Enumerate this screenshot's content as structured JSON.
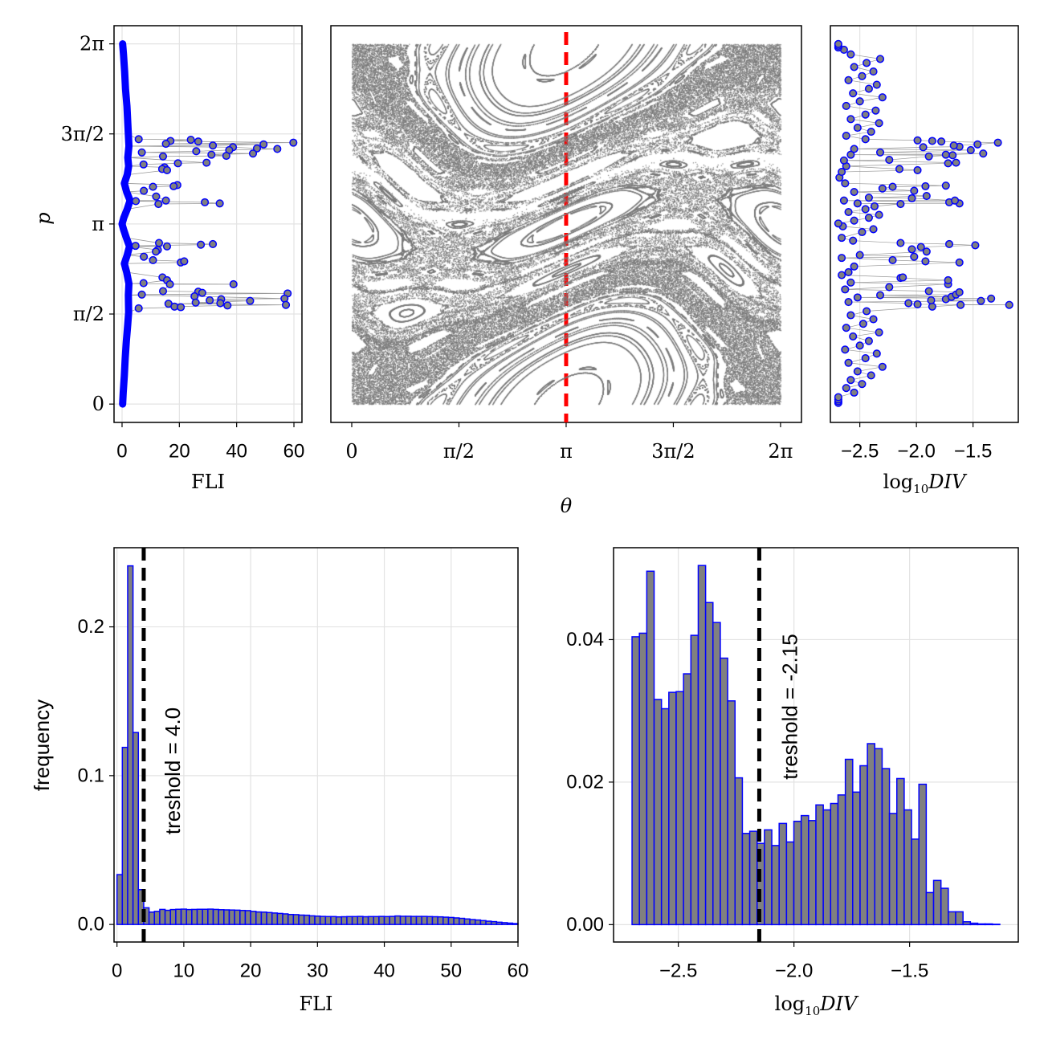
{
  "colors": {
    "marker_fill": "#808080",
    "marker_edge": "#0000ff",
    "connector": "#999999",
    "bar_fill": "#808080",
    "bar_edge": "#0000ff",
    "section_points": "#7a7a7a",
    "section_line": "#ff0000",
    "threshold_line": "#000000",
    "grid": "#e3e3e3"
  },
  "chart_data": [
    {
      "id": "fli_vs_p",
      "type": "scatter",
      "xlabel": "FLI",
      "ylabel": "p",
      "xlim": [
        -2.8,
        62.8
      ],
      "ylim": [
        -0.32,
        6.6
      ],
      "xticks": [
        {
          "v": 0,
          "label": "0"
        },
        {
          "v": 20,
          "label": "20"
        },
        {
          "v": 40,
          "label": "40"
        },
        {
          "v": 60,
          "label": "60"
        }
      ],
      "yticks": [
        {
          "v": 0,
          "label": "0"
        },
        {
          "v": 1.5708,
          "label": "π/2"
        },
        {
          "v": 3.1416,
          "label": "π"
        },
        {
          "v": 4.7124,
          "label": "3π/2"
        },
        {
          "v": 6.2832,
          "label": "2π"
        }
      ],
      "baseline": [
        [
          0.0,
          0.2
        ],
        [
          0.2,
          0.4
        ],
        [
          0.5,
          0.8
        ],
        [
          0.8,
          1.1
        ],
        [
          1.1,
          1.5
        ],
        [
          1.4,
          2.0
        ],
        [
          1.6,
          2.3
        ],
        [
          1.9,
          2.2
        ],
        [
          2.1,
          2.4
        ],
        [
          2.3,
          1.6
        ],
        [
          2.45,
          0.8
        ],
        [
          2.6,
          1.8
        ],
        [
          2.75,
          2.6
        ],
        [
          2.9,
          1.5
        ],
        [
          3.05,
          0.5
        ],
        [
          3.1416,
          0.0
        ],
        [
          3.25,
          0.6
        ],
        [
          3.4,
          1.8
        ],
        [
          3.55,
          2.8
        ],
        [
          3.7,
          1.6
        ],
        [
          3.85,
          0.8
        ],
        [
          4.0,
          1.8
        ],
        [
          4.15,
          2.3
        ],
        [
          4.3,
          2.0
        ],
        [
          4.5,
          2.4
        ],
        [
          4.7,
          2.2
        ],
        [
          4.9,
          2.0
        ],
        [
          5.2,
          1.7
        ],
        [
          5.5,
          1.2
        ],
        [
          5.8,
          0.9
        ],
        [
          6.1,
          0.5
        ],
        [
          6.2832,
          0.2
        ]
      ],
      "outliers": [
        [
          4.62,
          5.8
        ],
        [
          4.59,
          16.9
        ],
        [
          4.61,
          24.0
        ],
        [
          4.58,
          26.6
        ],
        [
          4.51,
          31.7
        ],
        [
          4.53,
          49.4
        ],
        [
          4.56,
          59.8
        ],
        [
          4.45,
          54.2
        ],
        [
          4.46,
          47.1
        ],
        [
          4.48,
          38.7
        ],
        [
          4.43,
          37.4
        ],
        [
          4.41,
          25.9
        ],
        [
          4.39,
          6.9
        ],
        [
          4.35,
          31.2
        ],
        [
          4.33,
          36.4
        ],
        [
          4.37,
          45.7
        ],
        [
          4.32,
          14.3
        ],
        [
          4.54,
          15.3
        ],
        [
          4.21,
          29.5
        ],
        [
          4.2,
          19.5
        ],
        [
          4.18,
          7.5
        ],
        [
          4.13,
          14.8
        ],
        [
          4.1,
          14.0
        ],
        [
          4.08,
          15.7
        ],
        [
          3.82,
          19.3
        ],
        [
          3.8,
          18.0
        ],
        [
          3.79,
          10.8
        ],
        [
          3.72,
          7.6
        ],
        [
          3.62,
          11.9
        ],
        [
          3.55,
          15.3
        ],
        [
          3.49,
          12.7
        ],
        [
          3.52,
          28.9
        ],
        [
          3.5,
          34.1
        ],
        [
          3.54,
          4.8
        ],
        [
          2.76,
          4.7
        ],
        [
          2.81,
          12.9
        ],
        [
          2.75,
          15.7
        ],
        [
          2.78,
          27.5
        ],
        [
          2.79,
          31.7
        ],
        [
          2.69,
          12.5
        ],
        [
          2.66,
          11.8
        ],
        [
          2.57,
          7.6
        ],
        [
          2.51,
          10.8
        ],
        [
          2.47,
          20.5
        ],
        [
          2.49,
          21.7
        ],
        [
          2.21,
          14.1
        ],
        [
          2.16,
          15.7
        ],
        [
          2.09,
          16.7
        ],
        [
          2.11,
          7.5
        ],
        [
          2.09,
          38.9
        ],
        [
          1.97,
          14.3
        ],
        [
          1.91,
          6.9
        ],
        [
          1.96,
          26.6
        ],
        [
          1.94,
          28.0
        ],
        [
          1.88,
          25.3
        ],
        [
          1.93,
          57.8
        ],
        [
          1.84,
          56.7
        ],
        [
          1.81,
          30.6
        ],
        [
          1.83,
          34.6
        ],
        [
          1.8,
          44.7
        ],
        [
          1.77,
          25.7
        ],
        [
          1.76,
          34.3
        ],
        [
          1.72,
          36.8
        ],
        [
          1.73,
          57.2
        ],
        [
          1.75,
          16.2
        ],
        [
          1.7,
          18.3
        ],
        [
          1.69,
          20.5
        ],
        [
          1.67,
          5.8
        ]
      ]
    },
    {
      "id": "poincare_section",
      "type": "scatter",
      "xlabel": "θ",
      "ylabel": "p",
      "xlim": [
        -0.306,
        6.59
      ],
      "ylim": [
        -0.32,
        6.6
      ],
      "xticks": [
        {
          "v": 0,
          "label": "0"
        },
        {
          "v": 1.5708,
          "label": "π/2"
        },
        {
          "v": 3.1416,
          "label": "π"
        },
        {
          "v": 4.7124,
          "label": "3π/2"
        },
        {
          "v": 6.2832,
          "label": "2π"
        }
      ],
      "section_theta": 3.1416
    },
    {
      "id": "div_vs_p",
      "type": "scatter",
      "xlabel_parts": {
        "base": "log",
        "sub": "10",
        "var": "DIV"
      },
      "xlim": [
        -2.76,
        -1.1
      ],
      "ylim": [
        -0.32,
        6.6
      ],
      "xticks": [
        {
          "v": -2.5,
          "label": "−2.5"
        },
        {
          "v": -2.0,
          "label": "−2.0"
        },
        {
          "v": -1.5,
          "label": "−1.5"
        }
      ],
      "points": [
        [
          0.02,
          -2.69
        ],
        [
          0.05,
          -2.69
        ],
        [
          0.08,
          -2.69
        ],
        [
          0.12,
          -2.69
        ],
        [
          0.2,
          -2.55
        ],
        [
          0.28,
          -2.62
        ],
        [
          0.35,
          -2.48
        ],
        [
          0.42,
          -2.58
        ],
        [
          0.5,
          -2.4
        ],
        [
          0.57,
          -2.52
        ],
        [
          0.65,
          -2.3
        ],
        [
          0.72,
          -2.6
        ],
        [
          0.8,
          -2.45
        ],
        [
          0.88,
          -2.35
        ],
        [
          0.95,
          -2.63
        ],
        [
          1.02,
          -2.5
        ],
        [
          1.1,
          -2.42
        ],
        [
          1.18,
          -2.56
        ],
        [
          1.25,
          -2.33
        ],
        [
          1.33,
          -2.62
        ],
        [
          1.4,
          -2.47
        ],
        [
          1.48,
          -2.38
        ],
        [
          1.55,
          -2.58
        ],
        [
          1.62,
          -2.44
        ],
        [
          1.78,
          -2.6
        ],
        [
          1.86,
          -2.52
        ],
        [
          2.0,
          -2.63
        ],
        [
          2.12,
          -2.58
        ],
        [
          2.25,
          -2.66
        ],
        [
          2.3,
          -2.6
        ],
        [
          2.4,
          -2.55
        ],
        [
          2.55,
          -2.66
        ],
        [
          2.6,
          -2.5
        ],
        [
          2.85,
          -2.56
        ],
        [
          2.9,
          -2.66
        ],
        [
          3.0,
          -2.48
        ],
        [
          3.05,
          -2.38
        ],
        [
          3.1,
          -2.65
        ],
        [
          3.15,
          -2.69
        ],
        [
          3.2,
          -2.55
        ],
        [
          3.25,
          -2.42
        ],
        [
          3.3,
          -2.33
        ],
        [
          3.35,
          -2.6
        ],
        [
          3.4,
          -2.45
        ],
        [
          3.45,
          -2.37
        ],
        [
          3.5,
          -2.52
        ],
        [
          3.55,
          -2.64
        ],
        [
          3.6,
          -2.42
        ],
        [
          3.7,
          -2.55
        ],
        [
          3.85,
          -2.63
        ],
        [
          3.95,
          -2.68
        ],
        [
          4.05,
          -2.66
        ],
        [
          4.15,
          -2.62
        ],
        [
          4.25,
          -2.64
        ],
        [
          4.35,
          -2.58
        ],
        [
          4.45,
          -2.55
        ],
        [
          4.62,
          -2.45
        ],
        [
          4.68,
          -2.62
        ],
        [
          4.75,
          -2.4
        ],
        [
          4.82,
          -2.52
        ],
        [
          4.9,
          -2.33
        ],
        [
          4.97,
          -2.58
        ],
        [
          5.05,
          -2.45
        ],
        [
          5.12,
          -2.36
        ],
        [
          5.2,
          -2.62
        ],
        [
          5.28,
          -2.5
        ],
        [
          5.35,
          -2.3
        ],
        [
          5.42,
          -2.56
        ],
        [
          5.5,
          -2.42
        ],
        [
          5.57,
          -2.35
        ],
        [
          5.65,
          -2.6
        ],
        [
          5.72,
          -2.48
        ],
        [
          5.8,
          -2.38
        ],
        [
          5.88,
          -2.55
        ],
        [
          5.95,
          -2.44
        ],
        [
          6.02,
          -2.32
        ],
        [
          6.1,
          -2.58
        ],
        [
          6.18,
          -2.64
        ],
        [
          6.22,
          -2.69
        ],
        [
          6.25,
          -2.69
        ],
        [
          6.28,
          -2.69
        ],
        [
          4.6,
          -1.99
        ],
        [
          4.59,
          -1.86
        ],
        [
          4.58,
          -1.78
        ],
        [
          4.53,
          -1.46
        ],
        [
          4.56,
          -1.28
        ],
        [
          4.51,
          -1.67
        ],
        [
          4.49,
          -1.62
        ],
        [
          4.48,
          -1.94
        ],
        [
          4.43,
          -1.52
        ],
        [
          4.37,
          -1.41
        ],
        [
          4.35,
          -1.74
        ],
        [
          4.34,
          -1.68
        ],
        [
          4.32,
          -1.89
        ],
        [
          4.39,
          -2.32
        ],
        [
          4.26,
          -2.24
        ],
        [
          4.2,
          -1.72
        ],
        [
          4.21,
          -1.65
        ],
        [
          4.1,
          -2.15
        ],
        [
          4.08,
          -1.99
        ],
        [
          3.81,
          -1.74
        ],
        [
          3.8,
          -1.92
        ],
        [
          3.79,
          -2.21
        ],
        [
          3.72,
          -2.02
        ],
        [
          3.63,
          -1.91
        ],
        [
          3.59,
          -2.04
        ],
        [
          3.52,
          -1.71
        ],
        [
          3.55,
          -1.66
        ],
        [
          3.5,
          -1.62
        ],
        [
          3.49,
          -2.14
        ],
        [
          3.76,
          -2.3
        ],
        [
          2.81,
          -2.14
        ],
        [
          2.79,
          -1.71
        ],
        [
          2.77,
          -1.48
        ],
        [
          2.74,
          -1.96
        ],
        [
          2.7,
          -2.04
        ],
        [
          2.66,
          -1.91
        ],
        [
          2.57,
          -2.02
        ],
        [
          2.51,
          -2.21
        ],
        [
          2.49,
          -1.92
        ],
        [
          2.47,
          -1.62
        ],
        [
          2.2,
          -2.14
        ],
        [
          2.21,
          -2.12
        ],
        [
          2.16,
          -1.72
        ],
        [
          2.09,
          -1.72
        ],
        [
          1.97,
          -1.89
        ],
        [
          1.95,
          -1.62
        ],
        [
          1.91,
          -1.65
        ],
        [
          1.87,
          -1.69
        ],
        [
          1.84,
          -1.34
        ],
        [
          1.83,
          -1.74
        ],
        [
          1.8,
          -1.43
        ],
        [
          1.81,
          -1.87
        ],
        [
          1.76,
          -2.07
        ],
        [
          1.74,
          -1.99
        ],
        [
          1.7,
          -1.86
        ],
        [
          1.73,
          -1.61
        ],
        [
          1.73,
          -1.18
        ],
        [
          1.9,
          -2.32
        ],
        [
          2.04,
          -2.24
        ]
      ]
    },
    {
      "id": "fli_histogram",
      "type": "bar",
      "xlabel": "FLI",
      "ylabel": "frequency",
      "xlim": [
        -0.44,
        60
      ],
      "ylim": [
        -0.0118,
        0.2532
      ],
      "xticks": [
        {
          "v": 0,
          "label": "0"
        },
        {
          "v": 10,
          "label": "10"
        },
        {
          "v": 20,
          "label": "20"
        },
        {
          "v": 30,
          "label": "30"
        },
        {
          "v": 40,
          "label": "40"
        },
        {
          "v": 50,
          "label": "50"
        },
        {
          "v": 60,
          "label": "60"
        }
      ],
      "yticks": [
        {
          "v": 0,
          "label": "0.0"
        },
        {
          "v": 0.1,
          "label": "0.1"
        },
        {
          "v": 0.2,
          "label": "0.2"
        }
      ],
      "bin_start": 0,
      "bin_width": 0.8,
      "values": [
        0.0335,
        0.119,
        0.241,
        0.129,
        0.0234,
        0.0112,
        0.0083,
        0.0088,
        0.0101,
        0.0095,
        0.01,
        0.0102,
        0.0103,
        0.01,
        0.0101,
        0.0102,
        0.0102,
        0.0103,
        0.0101,
        0.0099,
        0.0098,
        0.0097,
        0.0096,
        0.0094,
        0.0093,
        0.0088,
        0.0084,
        0.0083,
        0.008,
        0.0077,
        0.0074,
        0.0071,
        0.0067,
        0.0066,
        0.0063,
        0.0062,
        0.0058,
        0.0056,
        0.0054,
        0.0053,
        0.0053,
        0.0051,
        0.0052,
        0.0053,
        0.0053,
        0.0054,
        0.0052,
        0.0053,
        0.0053,
        0.0054,
        0.0053,
        0.0054,
        0.0057,
        0.0055,
        0.0055,
        0.0054,
        0.0054,
        0.0054,
        0.0053,
        0.0052,
        0.0051,
        0.0049,
        0.0047,
        0.0044,
        0.0041,
        0.0037,
        0.0033,
        0.003,
        0.0026,
        0.0022,
        0.0019,
        0.0015,
        0.0012,
        0.0009,
        0.0006
      ],
      "threshold": 4.0,
      "threshold_label": "treshold = 4.0"
    },
    {
      "id": "div_histogram",
      "type": "bar",
      "xlabel_parts": {
        "base": "log",
        "sub": "10",
        "var": "DIV"
      },
      "xlim": [
        -2.78,
        -1.03
      ],
      "ylim": [
        -0.00244,
        0.0529
      ],
      "xticks": [
        {
          "v": -2.5,
          "label": "−2.5"
        },
        {
          "v": -2.0,
          "label": "−2.0"
        },
        {
          "v": -1.5,
          "label": "−1.5"
        }
      ],
      "yticks": [
        {
          "v": 0,
          "label": "0.00"
        },
        {
          "v": 0.02,
          "label": "0.02"
        },
        {
          "v": 0.04,
          "label": "0.04"
        }
      ],
      "bin_start": -2.7,
      "bin_width": 0.0318,
      "values": [
        0.0404,
        0.0409,
        0.0496,
        0.0316,
        0.0303,
        0.0326,
        0.0327,
        0.0352,
        0.0406,
        0.0504,
        0.0452,
        0.0424,
        0.0374,
        0.0314,
        0.0206,
        0.0128,
        0.0131,
        0.0114,
        0.0133,
        0.0111,
        0.0142,
        0.0116,
        0.0145,
        0.0153,
        0.0146,
        0.0168,
        0.0161,
        0.017,
        0.0182,
        0.0232,
        0.0186,
        0.0223,
        0.0254,
        0.0247,
        0.0219,
        0.0156,
        0.0205,
        0.0161,
        0.012,
        0.0197,
        0.0045,
        0.0062,
        0.0051,
        0.0018,
        0.0018,
        0.0004,
        0.0002,
        0.0001,
        0.0001,
        5e-05
      ],
      "threshold": -2.15,
      "threshold_label": "treshold = -2.15"
    }
  ]
}
